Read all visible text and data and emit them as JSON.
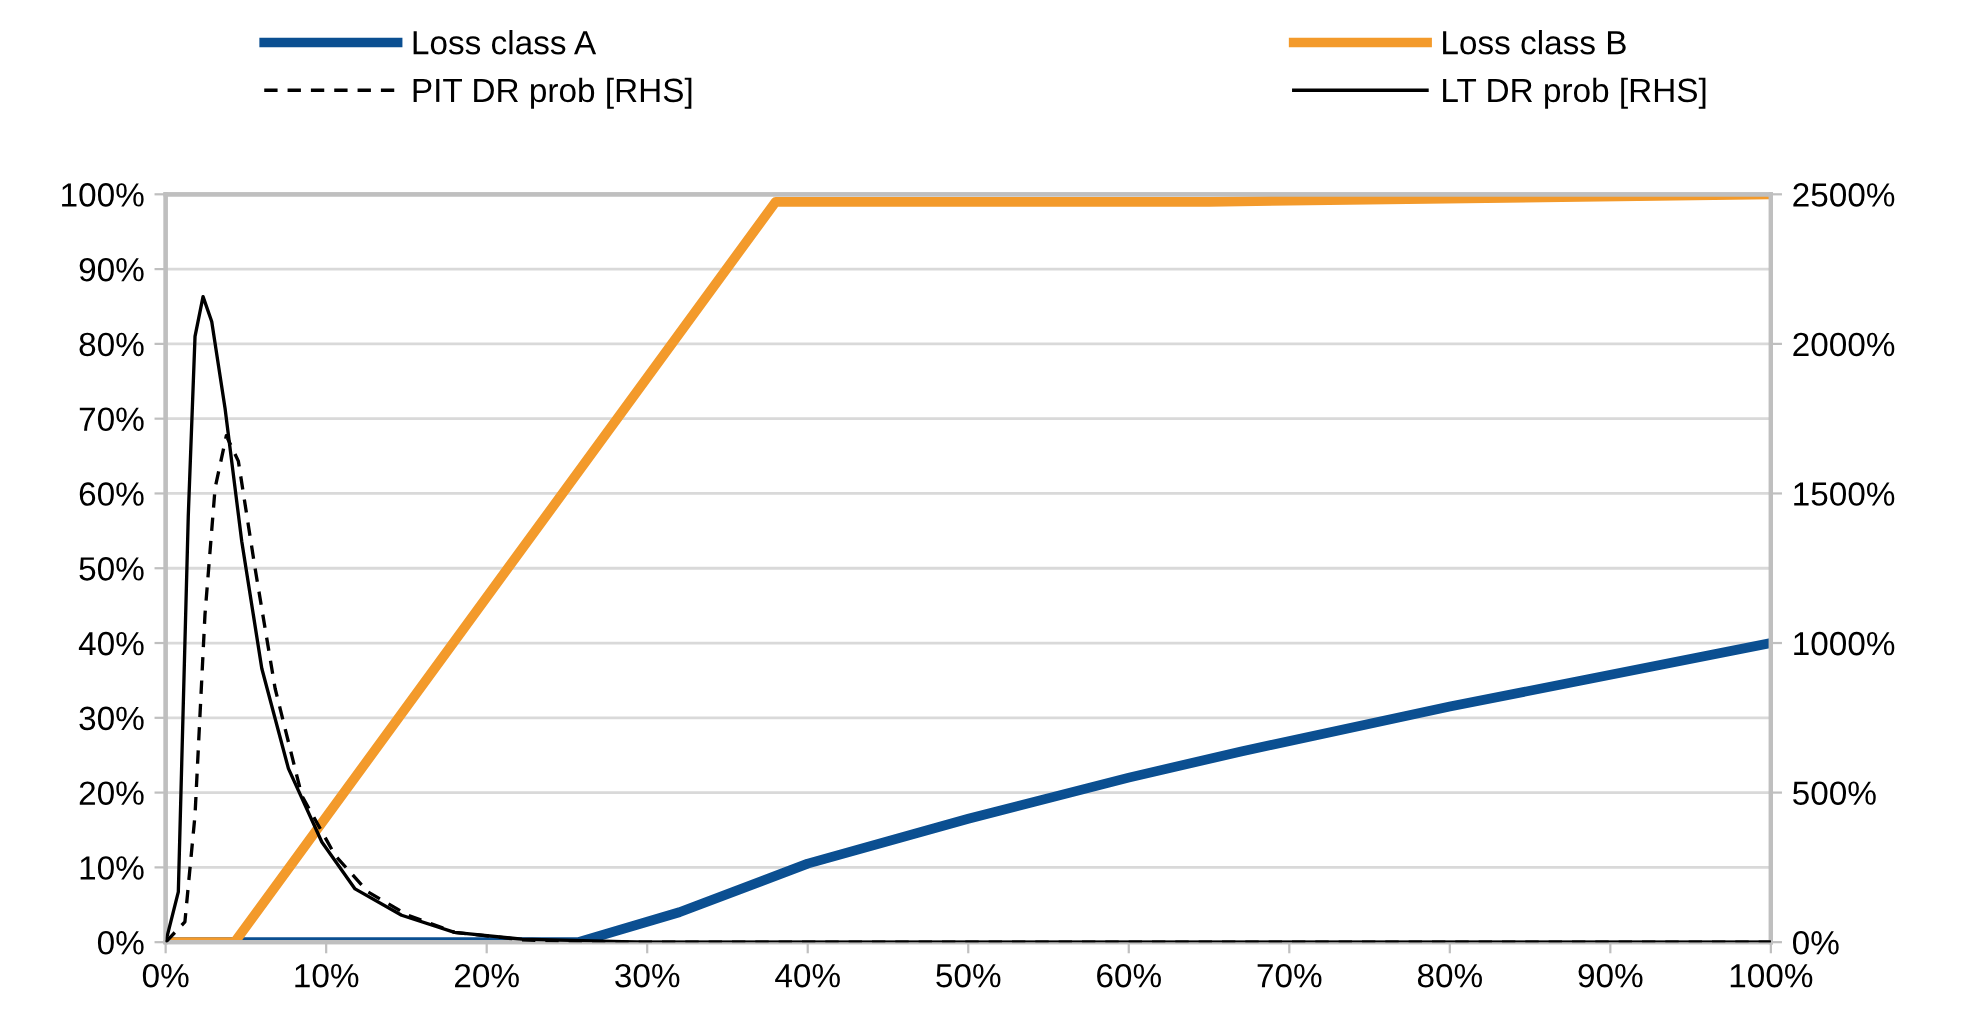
{
  "chart_data": {
    "type": "line",
    "legend": "top",
    "grid": "y",
    "marker": "none",
    "xlim": [
      0,
      100
    ],
    "xticks": [
      {
        "value": 0,
        "label": "0%"
      },
      {
        "value": 10,
        "label": "10%"
      },
      {
        "value": 20,
        "label": "20%"
      },
      {
        "value": 30,
        "label": "30%"
      },
      {
        "value": 40,
        "label": "40%"
      },
      {
        "value": 50,
        "label": "50%"
      },
      {
        "value": 60,
        "label": "60%"
      },
      {
        "value": 70,
        "label": "70%"
      },
      {
        "value": 80,
        "label": "80%"
      },
      {
        "value": 90,
        "label": "90%"
      },
      {
        "value": 100,
        "label": "100%"
      }
    ],
    "ylim": [
      0,
      100
    ],
    "yticks": [
      {
        "value": 0,
        "label": "0%"
      },
      {
        "value": 10,
        "label": "10%"
      },
      {
        "value": 20,
        "label": "20%"
      },
      {
        "value": 30,
        "label": "30%"
      },
      {
        "value": 40,
        "label": "40%"
      },
      {
        "value": 50,
        "label": "50%"
      },
      {
        "value": 60,
        "label": "60%"
      },
      {
        "value": 70,
        "label": "70%"
      },
      {
        "value": 80,
        "label": "80%"
      },
      {
        "value": 90,
        "label": "90%"
      },
      {
        "value": 100,
        "label": "100%"
      }
    ],
    "y2lim": [
      0,
      2500
    ],
    "y2ticks": [
      {
        "value": 0,
        "label": "0%"
      },
      {
        "value": 500,
        "label": "500%"
      },
      {
        "value": 1000,
        "label": "1000%"
      },
      {
        "value": 1500,
        "label": "1500%"
      },
      {
        "value": 2000,
        "label": "2000%"
      },
      {
        "value": 2500,
        "label": "2500%"
      }
    ],
    "series": [
      {
        "name": "Loss class A",
        "color": "#0b4f91",
        "line_style": "solid",
        "x": [
          0,
          25.7,
          32,
          40,
          50,
          60,
          67,
          80,
          100
        ],
        "values": [
          0,
          0,
          4,
          10.5,
          16.5,
          22,
          25.5,
          31.5,
          40
        ]
      },
      {
        "name": "Loss class B",
        "color": "#f39a2b",
        "line_style": "solid",
        "x": [
          0,
          4.3,
          38,
          65,
          100
        ],
        "values": [
          0,
          0,
          99,
          99,
          100
        ]
      },
      {
        "name": "PIT DR prob [RHS]",
        "color": "#000000",
        "line_style": "dashed",
        "axis": "y2",
        "x": [
          0,
          1.2,
          1.83,
          2.45,
          3.08,
          3.78,
          4.53,
          5.57,
          6.82,
          8.48,
          10.56,
          12.6,
          15.1,
          18,
          22.2,
          26.4,
          100
        ],
        "values": [
          0,
          68,
          425,
          1095,
          1518,
          1693,
          1608,
          1250,
          848,
          490,
          290,
          168,
          90,
          33,
          8,
          0,
          0
        ]
      },
      {
        "name": "LT DR prob [RHS]",
        "color": "#000000",
        "line_style": "solid",
        "axis": "y2",
        "x": [
          0,
          0.79,
          1.41,
          1.83,
          2.33,
          2.87,
          3.7,
          4.74,
          5.99,
          7.65,
          9.73,
          11.8,
          14.7,
          18,
          22.2,
          29.7,
          100
        ],
        "values": [
          0,
          168,
          1425,
          2025,
          2158,
          2075,
          1785,
          1340,
          915,
          580,
          335,
          178,
          90,
          33,
          10,
          0,
          0
        ]
      }
    ]
  }
}
